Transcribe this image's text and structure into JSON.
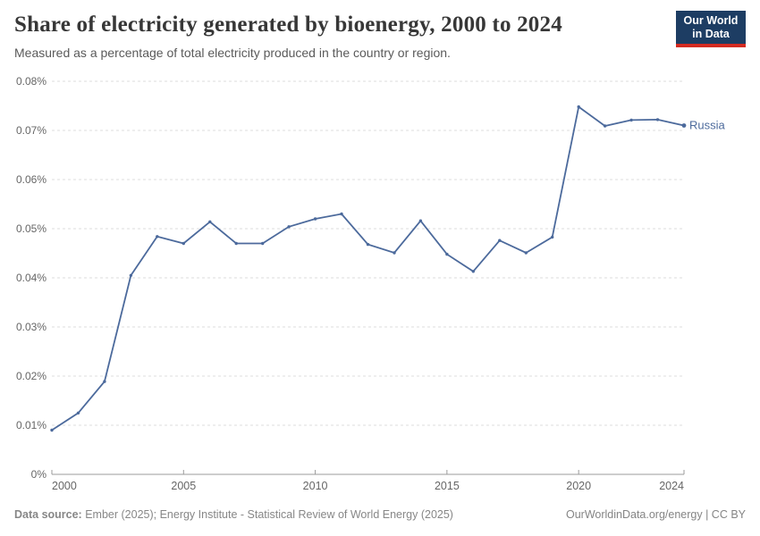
{
  "header": {
    "title": "Share of electricity generated by bioenergy, 2000 to 2024",
    "subtitle": "Measured as a percentage of total electricity produced in the country or region.",
    "logo": {
      "line1": "Our World",
      "line2": "in Data",
      "bg_color": "#1d3d63",
      "bar_color": "#d42b21"
    }
  },
  "chart_data": {
    "type": "line",
    "title": "Share of electricity generated by bioenergy, 2000 to 2024",
    "subtitle": "Measured as a percentage of total electricity produced in the country or region.",
    "unit": "%",
    "x": [
      2000,
      2001,
      2002,
      2003,
      2004,
      2005,
      2006,
      2007,
      2008,
      2009,
      2010,
      2011,
      2012,
      2013,
      2014,
      2015,
      2016,
      2017,
      2018,
      2019,
      2020,
      2021,
      2022,
      2023,
      2024
    ],
    "series": [
      {
        "name": "Russia",
        "color": "#4c6a9c",
        "values": [
          0.009,
          0.0125,
          0.0189,
          0.0405,
          0.0484,
          0.047,
          0.0514,
          0.047,
          0.047,
          0.0504,
          0.052,
          0.053,
          0.0468,
          0.0451,
          0.0516,
          0.0448,
          0.0413,
          0.0476,
          0.0451,
          0.0483,
          0.0748,
          0.0709,
          0.0721,
          0.0722,
          0.071
        ]
      }
    ],
    "xlim": [
      2000,
      2024
    ],
    "ylim": [
      0,
      0.08
    ],
    "xticks": [
      2000,
      2005,
      2010,
      2015,
      2020,
      2024
    ],
    "yticks": [
      {
        "value": 0,
        "label": "0%"
      },
      {
        "value": 0.01,
        "label": "0.01%"
      },
      {
        "value": 0.02,
        "label": "0.02%"
      },
      {
        "value": 0.03,
        "label": "0.03%"
      },
      {
        "value": 0.04,
        "label": "0.04%"
      },
      {
        "value": 0.05,
        "label": "0.05%"
      },
      {
        "value": 0.06,
        "label": "0.06%"
      },
      {
        "value": 0.07,
        "label": "0.07%"
      },
      {
        "value": 0.08,
        "label": "0.08%"
      }
    ],
    "grid": "horizontal-dashed",
    "legend": "inline-end-label"
  },
  "footer": {
    "datasource_label": "Data source:",
    "datasource_text": " Ember (2025); Energy Institute - Statistical Review of World Energy (2025)",
    "credit": "OurWorldinData.org/energy | CC BY"
  }
}
